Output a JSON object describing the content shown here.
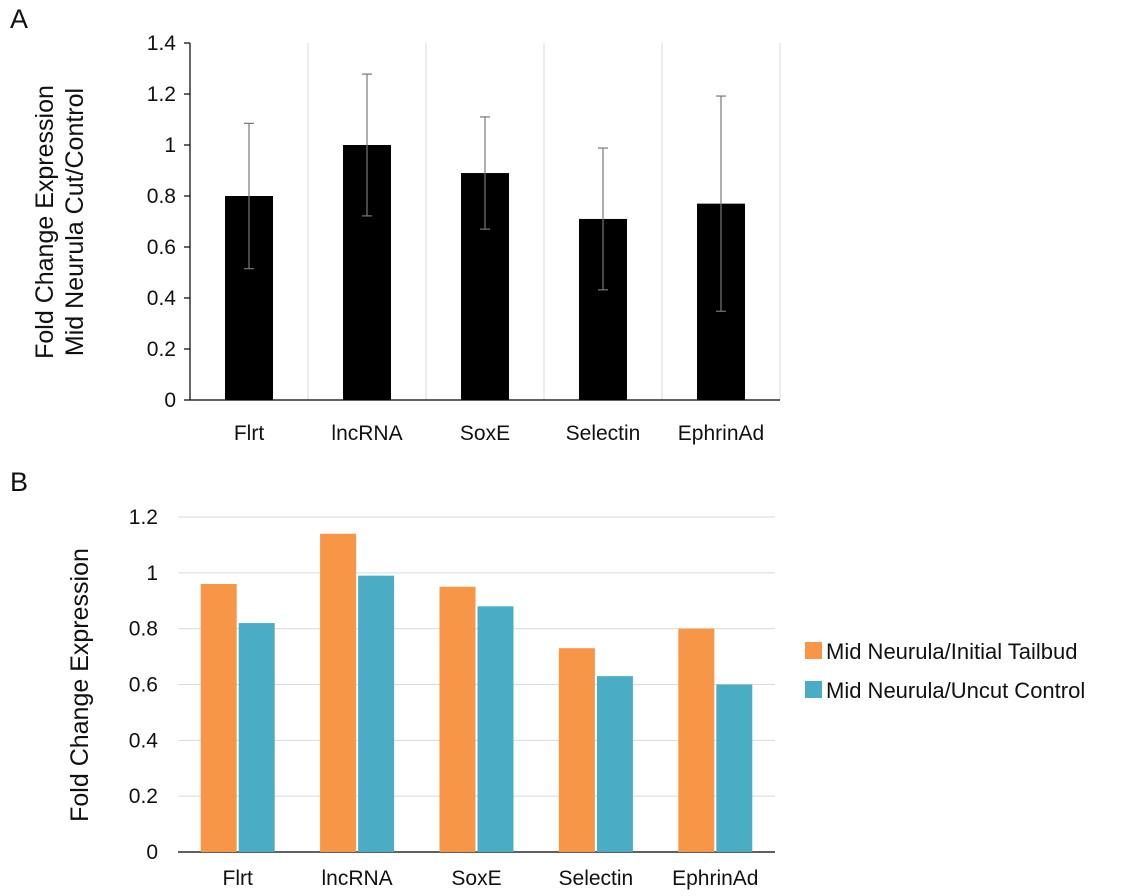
{
  "chart_data": [
    {
      "panel_label": "A",
      "type": "bar",
      "categories": [
        "Flrt",
        "lncRNA",
        "SoxE",
        "Selectin",
        "EphrinAd"
      ],
      "series": [
        {
          "values": [
            0.8,
            1.0,
            0.89,
            0.71,
            0.77
          ],
          "error": [
            0.285,
            0.278,
            0.22,
            0.278,
            0.422
          ],
          "color": "#000000"
        }
      ],
      "ylabel_lines": [
        "Fold Change Expression",
        "Mid Neurula Cut/Control"
      ],
      "yticks": [
        "0",
        "0.2",
        "0.4",
        "0.6",
        "0.8",
        "1",
        "1.2",
        "1.4"
      ],
      "ylim": [
        0,
        1.4
      ],
      "grid": "vertical category separators"
    },
    {
      "panel_label": "B",
      "type": "bar",
      "categories": [
        "Flrt",
        "lncRNA",
        "SoxE",
        "Selectin",
        "EphrinAd"
      ],
      "series": [
        {
          "name": "Mid Neurula/Initial Tailbud",
          "values": [
            0.96,
            1.14,
            0.95,
            0.73,
            0.8
          ],
          "color": "#f79646"
        },
        {
          "name": "Mid Neurula/Uncut Control",
          "values": [
            0.82,
            0.99,
            0.88,
            0.63,
            0.6
          ],
          "color": "#4bacc6"
        }
      ],
      "ylabel": "Fold Change Expression",
      "yticks": [
        "0",
        "0.2",
        "0.4",
        "0.6",
        "0.8",
        "1",
        "1.2"
      ],
      "ylim": [
        0,
        1.2
      ],
      "grid": "horizontal",
      "legend_position": "right"
    }
  ]
}
